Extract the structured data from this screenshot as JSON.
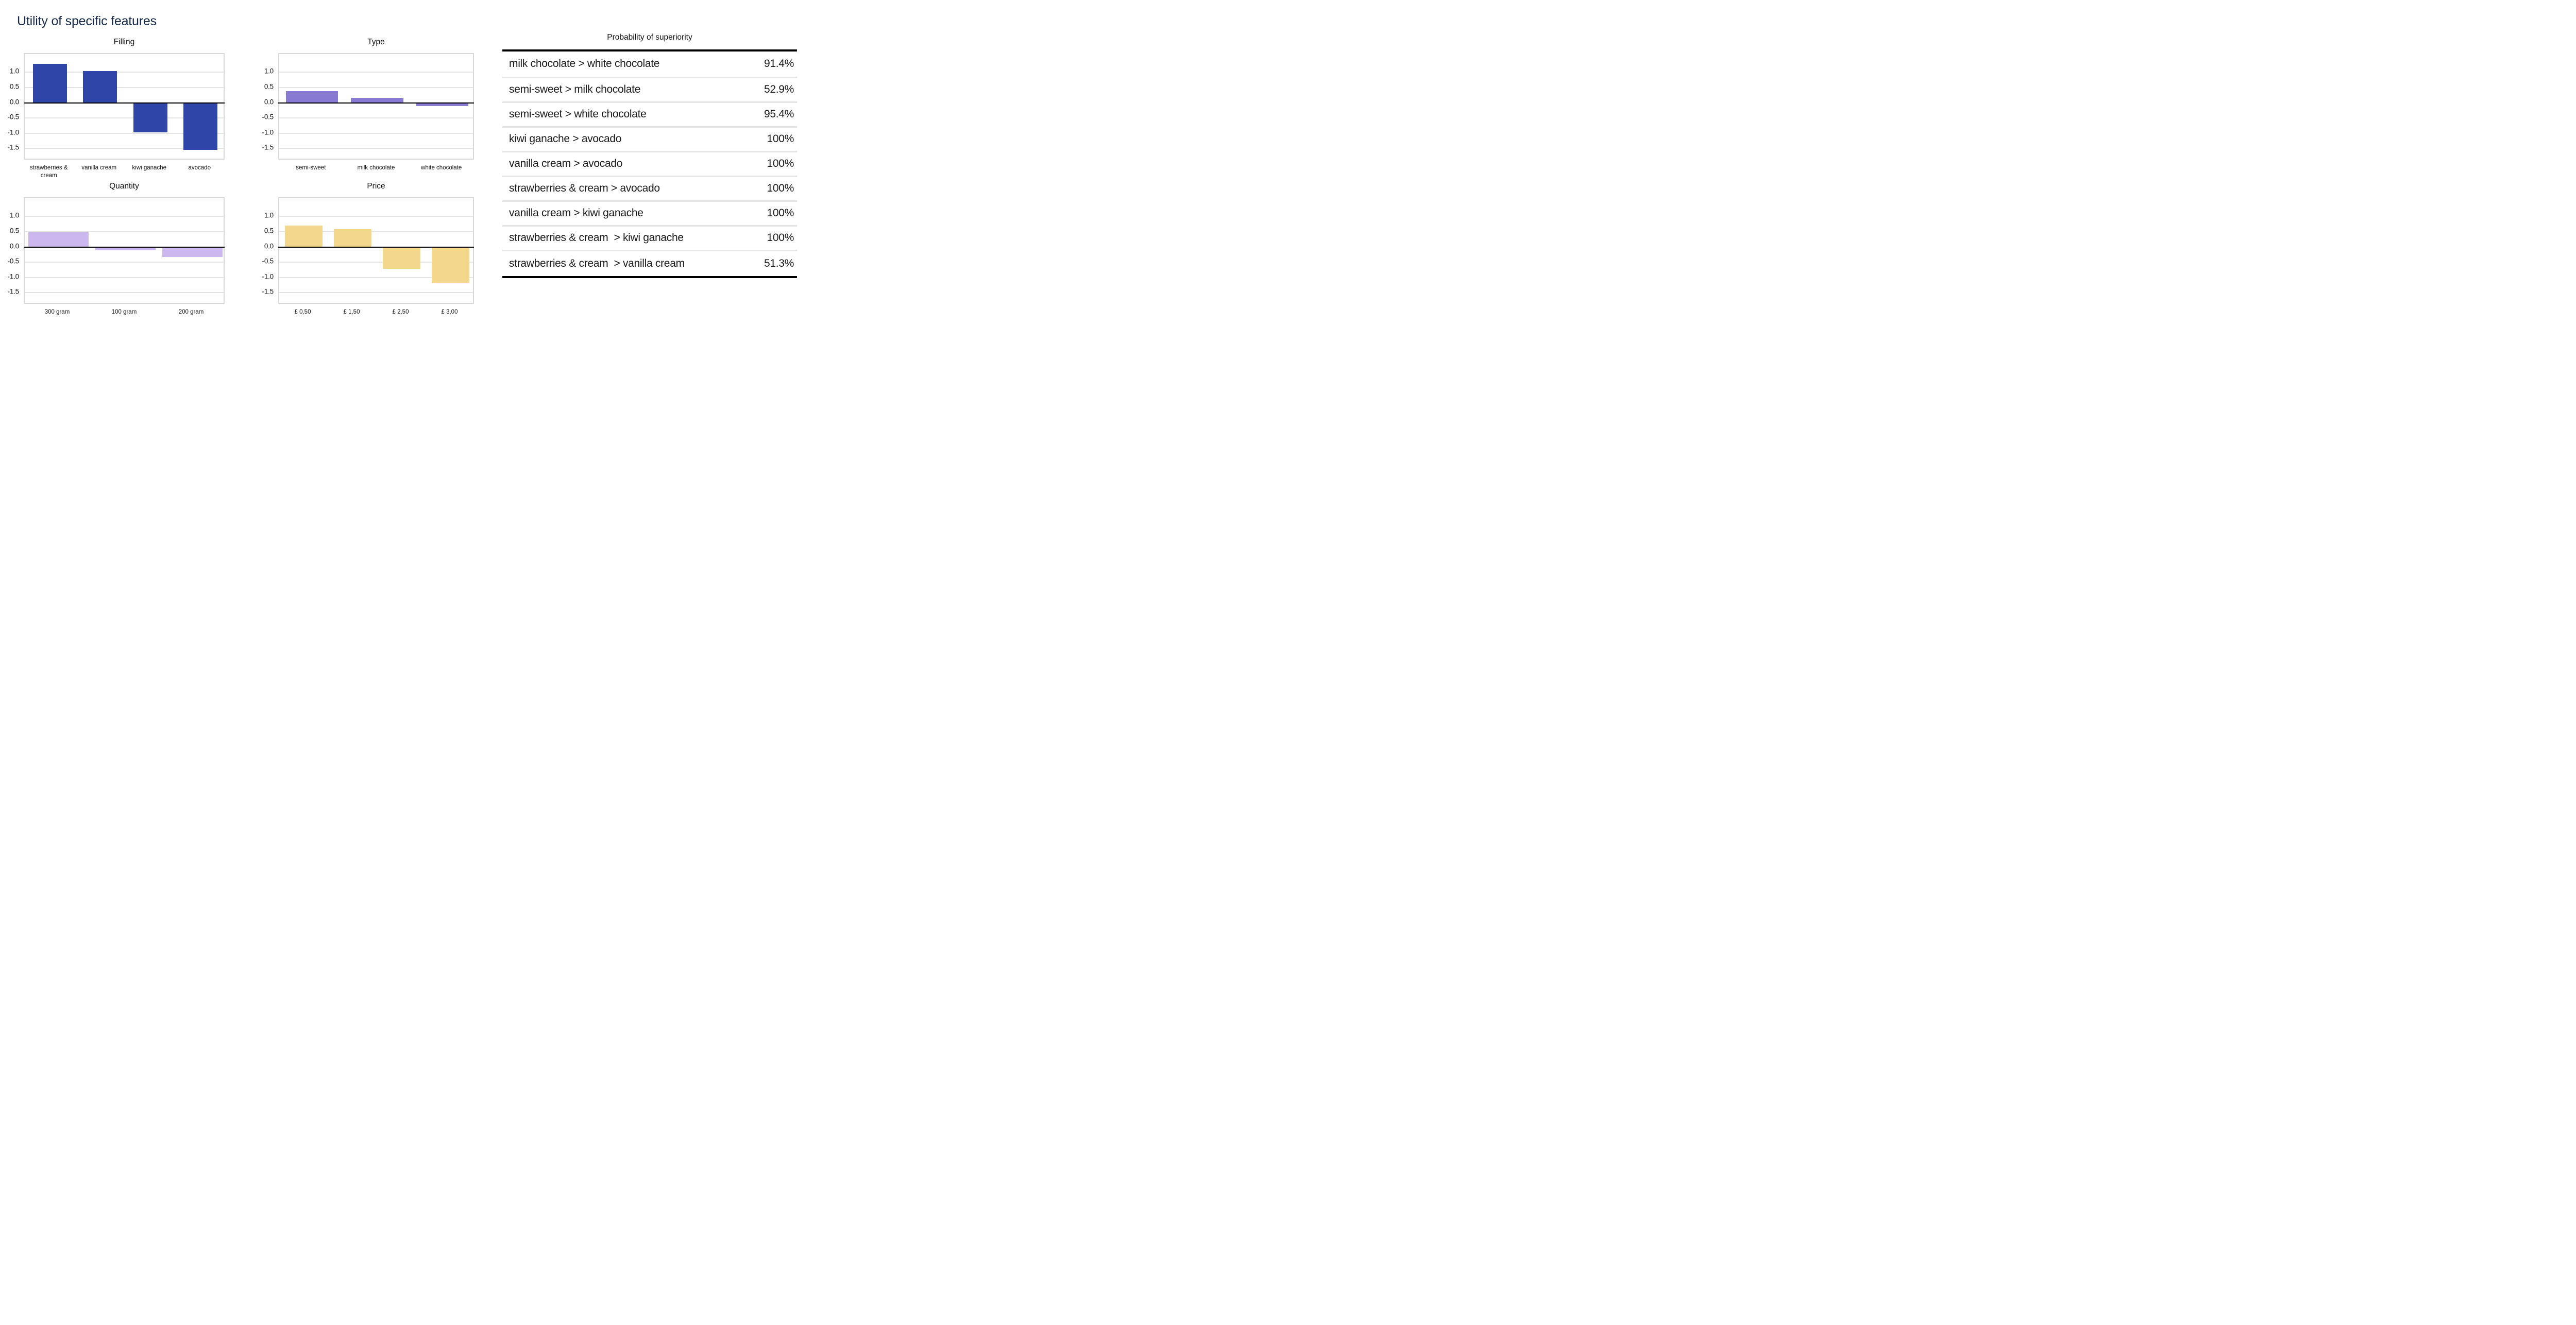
{
  "page": {
    "title": "Utility of specific features"
  },
  "colors": {
    "title_navy": "#172a4a",
    "filling_bar": "#3045a8",
    "type_bar": "#887ad3",
    "quantity_bar": "#ccb8ee",
    "price_bar": "#f2d78c",
    "gridline": "#e4e4e4",
    "plot_border": "#d8d8d8",
    "zero_line": "#000000",
    "table_separator": "#e4e4e4"
  },
  "chart_data": [
    {
      "type": "bar",
      "title": "Filling",
      "categories": [
        "strawberries & cream",
        "vanilla cream",
        "kiwi ganache",
        "avocado"
      ],
      "values": [
        1.28,
        1.05,
        -0.97,
        -1.55
      ],
      "bar_color": "#3045a8",
      "ylim": [
        -1.9,
        1.6
      ],
      "yticks": [
        "1.0",
        "0.5",
        "0.0",
        "-0.5",
        "-1.0",
        "-1.5"
      ],
      "grid": true,
      "legend": "none"
    },
    {
      "type": "bar",
      "title": "Type",
      "categories": [
        "semi-sweet",
        "milk chocolate",
        "white chocolate"
      ],
      "values": [
        0.39,
        0.17,
        -0.1
      ],
      "bar_color": "#887ad3",
      "ylim": [
        -1.9,
        1.6
      ],
      "yticks": [
        "1.0",
        "0.5",
        "0.0",
        "-0.5",
        "-1.0",
        "-1.5"
      ],
      "grid": true,
      "legend": "none"
    },
    {
      "type": "bar",
      "title": "Quantity",
      "categories": [
        "300 gram",
        "100 gram",
        "200 gram"
      ],
      "values": [
        0.48,
        -0.1,
        -0.32
      ],
      "bar_color": "#ccb8ee",
      "ylim": [
        -1.9,
        1.6
      ],
      "yticks": [
        "1.0",
        "0.5",
        "0.0",
        "-0.5",
        "-1.0",
        "-1.5"
      ],
      "grid": true,
      "legend": "none"
    },
    {
      "type": "bar",
      "title": "Price",
      "categories": [
        "£ 0,50",
        "£ 1,50",
        "£ 2,50",
        "£ 3,00"
      ],
      "values": [
        0.71,
        0.58,
        -0.72,
        -1.19
      ],
      "bar_color": "#f2d78c",
      "ylim": [
        -1.9,
        1.6
      ],
      "yticks": [
        "1.0",
        "0.5",
        "0.0",
        "-0.5",
        "-1.0",
        "-1.5"
      ],
      "grid": true,
      "legend": "none"
    },
    {
      "type": "table",
      "title": "Probability of superiority",
      "columns": [
        "comparison",
        "probability"
      ],
      "rows": [
        {
          "comparison": "milk chocolate > white chocolate",
          "probability": "91.4%"
        },
        {
          "comparison": "semi-sweet > milk chocolate",
          "probability": "52.9%"
        },
        {
          "comparison": "semi-sweet > white chocolate",
          "probability": "95.4%"
        },
        {
          "comparison": "kiwi ganache > avocado",
          "probability": "100%"
        },
        {
          "comparison": "vanilla cream > avocado",
          "probability": "100%"
        },
        {
          "comparison": "strawberries & cream > avocado",
          "probability": "100%"
        },
        {
          "comparison": "vanilla cream > kiwi ganache",
          "probability": "100%"
        },
        {
          "comparison": "strawberries & cream  > kiwi ganache",
          "probability": "100%"
        },
        {
          "comparison": "strawberries & cream  > vanilla cream",
          "probability": "51.3%"
        }
      ]
    }
  ]
}
